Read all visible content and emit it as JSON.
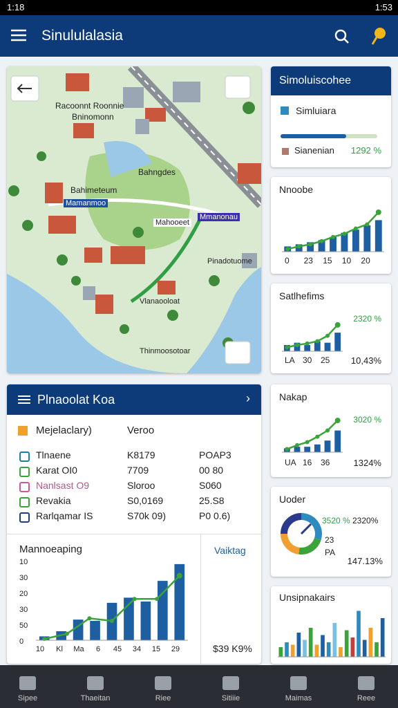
{
  "status_bar": {
    "time_left": "1:18",
    "time_right": "1:53"
  },
  "app_bar": {
    "title": "Sinululalasia"
  },
  "map": {
    "labels": [
      "Racoonnt Roonnie",
      "Bninomonn",
      "Bahngdes",
      "Bahimeteum",
      "Mamanmoo",
      "Mahooeet",
      "Mmanonau",
      "Pinadotuome",
      "Vlanaooloat",
      "Thinmoosotoar"
    ]
  },
  "summary_card": {
    "title": "Simoluiscohee",
    "item": "Simluiara",
    "legend": "Sianenian",
    "value_label": "1292 %"
  },
  "mini_charts": [
    {
      "title": "Nnoobe",
      "ylim": [
        0,
        100
      ],
      "bars": [
        10,
        14,
        18,
        22,
        28,
        36,
        42,
        50,
        60
      ],
      "line": [
        5,
        10,
        14,
        20,
        28,
        34,
        44,
        52,
        75
      ],
      "x_labels": [
        "0",
        "23",
        "15",
        "10",
        "20"
      ]
    },
    {
      "title": "Satlhefims",
      "ylim": [
        0,
        100
      ],
      "bars": [
        16,
        22,
        16,
        26,
        22,
        48
      ],
      "line": [
        10,
        16,
        20,
        26,
        40,
        68
      ],
      "x_labels": [
        "LA",
        "30",
        "25"
      ],
      "label_top": "2320 %",
      "label_bottom": "10,43%"
    },
    {
      "title": "Nakap",
      "ylim": [
        0,
        100
      ],
      "bars": [
        10,
        14,
        14,
        20,
        30,
        56
      ],
      "line": [
        8,
        18,
        26,
        40,
        56,
        82
      ],
      "x_labels": [
        "UA",
        "16",
        "36"
      ],
      "label_top": "3020 %",
      "label_bottom": "1324%"
    }
  ],
  "donut_card": {
    "title": "Uoder",
    "segments": [
      30,
      22,
      23,
      25
    ],
    "colors": [
      "#2e8bc0",
      "#3aa33a",
      "#f0a030",
      "#2b3a8c"
    ],
    "labels": [
      "3520 %",
      "2320%",
      "23",
      "PA",
      "147.13%"
    ]
  },
  "bars_card": {
    "title": "Unsipnakairs",
    "ylim": [
      0,
      100
    ],
    "values": [
      20,
      30,
      25,
      50,
      35,
      60,
      25,
      45,
      30,
      70,
      20,
      55,
      40,
      95,
      35,
      60,
      30,
      80
    ],
    "colors": [
      "#3aa33a",
      "#2e8bc0",
      "#f0a030",
      "#1d5fa0",
      "#7cc0e0",
      "#3aa33a",
      "#f0a030",
      "#1d5fa0",
      "#2e8bc0",
      "#7cc0e0",
      "#f0a030",
      "#3aa33a",
      "#c04040",
      "#2e8bc0",
      "#1d5fa0",
      "#f0a030",
      "#3aa33a",
      "#1d5fa0"
    ]
  },
  "panel": {
    "title": "Plnaoolat Koa",
    "head": [
      "Mejelaclary)",
      "Veroo"
    ],
    "rows": [
      [
        "Tlnaene",
        "K8179",
        "POAP3"
      ],
      [
        "Karat OI0",
        "7709",
        "00 80"
      ],
      [
        "Nanlsast O9",
        "Sloroo",
        "S060"
      ],
      [
        "Revakia",
        "S0,0169",
        "25.S8"
      ],
      [
        "Rarlqamar IS",
        "S70k 09)",
        "P0 0.6)"
      ]
    ],
    "chart": {
      "title": "Mannoeaping",
      "side_label": "Vaiktag",
      "total": "$39 K9%",
      "y_labels": [
        "10",
        "30",
        "20",
        "30",
        "50",
        "0"
      ],
      "ylim": [
        0,
        120
      ],
      "bars": [
        6,
        14,
        32,
        30,
        58,
        66,
        60,
        92,
        118
      ],
      "line": [
        2,
        10,
        34,
        30,
        64,
        64,
        100
      ],
      "x_labels": [
        "10",
        "Kl",
        "Ma",
        "6",
        "45",
        "34",
        "15",
        "29"
      ]
    }
  },
  "nav": [
    "Sipee",
    "Thaeitan",
    "Riee",
    "Sitiiie",
    "Maimas",
    "Reee"
  ]
}
